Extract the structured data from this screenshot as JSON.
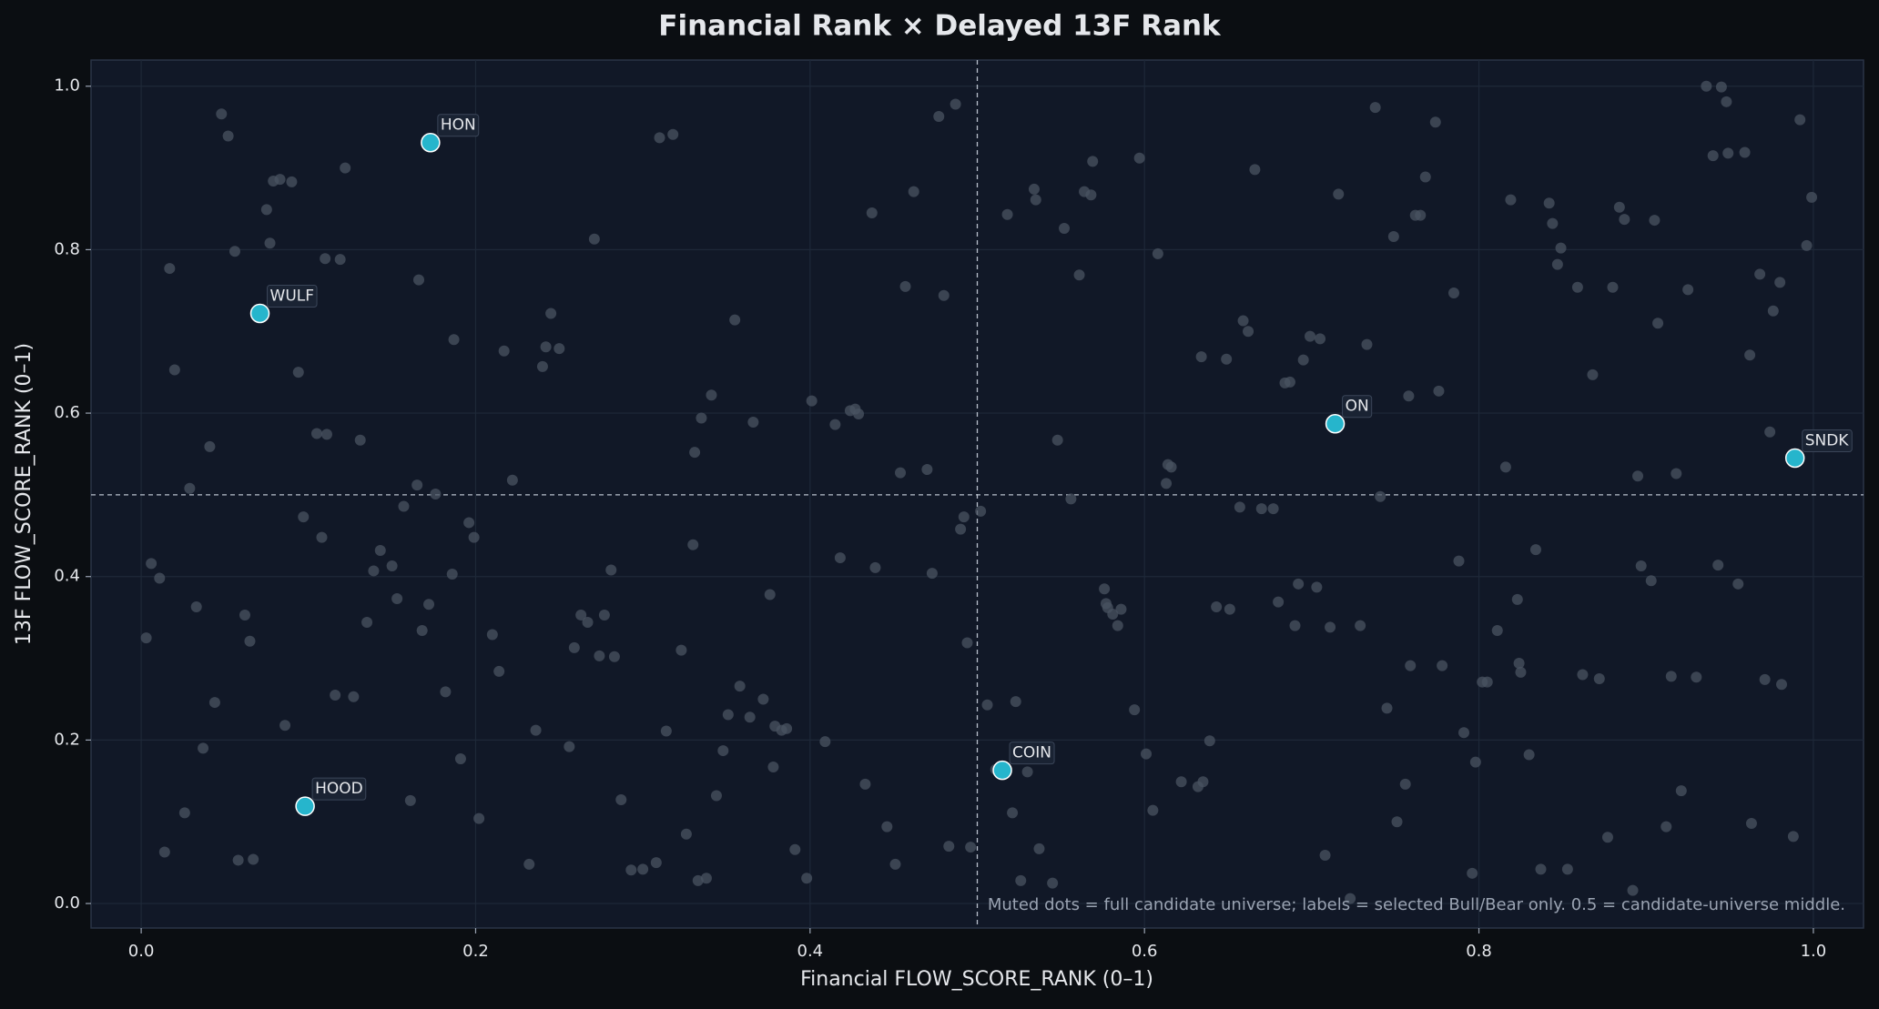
{
  "chart_data": {
    "type": "scatter",
    "title": "Financial Rank × Delayed 13F Rank",
    "x_label": "Financial FLOW_SCORE_RANK (0–1)",
    "y_label": "13F FLOW_SCORE_RANK (0–1)",
    "note": "Muted dots = full candidate universe; labels = selected Bull/Bear only. 0.5 = candidate-universe middle.",
    "xlim": [
      -0.03,
      1.03
    ],
    "ylim": [
      -0.03,
      1.032
    ],
    "xticks": [
      {
        "value": 0,
        "label": "0.0"
      },
      0.2,
      0.4,
      0.6,
      0.8,
      {
        "value": 1,
        "label": "1.0"
      }
    ],
    "yticks": [
      {
        "value": 0,
        "label": "0.0"
      },
      0.2,
      0.4,
      0.6,
      0.8,
      {
        "value": 1,
        "label": "1.0"
      }
    ],
    "grid": true,
    "reference_lines": {
      "x": 0.5,
      "y": 0.5
    },
    "series": [
      {
        "color": "#4a5361",
        "x": [
          0.003,
          0.006,
          0.011,
          0.014,
          0.017,
          0.02,
          0.026,
          0.029,
          0.033,
          0.037,
          0.041,
          0.044,
          0.048,
          0.052,
          0.056,
          0.058,
          0.062,
          0.065,
          0.067,
          0.075,
          0.077,
          0.079,
          0.083,
          0.086,
          0.09,
          0.094,
          0.097,
          0.105,
          0.108,
          0.11,
          0.111,
          0.116,
          0.119,
          0.122,
          0.127,
          0.131,
          0.135,
          0.139,
          0.143,
          0.15,
          0.153,
          0.157,
          0.161,
          0.165,
          0.166,
          0.168,
          0.172,
          0.176,
          0.182,
          0.186,
          0.187,
          0.191,
          0.196,
          0.199,
          0.202,
          0.21,
          0.214,
          0.217,
          0.222,
          0.232,
          0.236,
          0.24,
          0.242,
          0.245,
          0.25,
          0.256,
          0.259,
          0.263,
          0.267,
          0.271,
          0.274,
          0.277,
          0.281,
          0.283,
          0.287,
          0.293,
          0.3,
          0.308,
          0.31,
          0.314,
          0.318,
          0.323,
          0.326,
          0.33,
          0.331,
          0.333,
          0.335,
          0.338,
          0.341,
          0.344,
          0.348,
          0.351,
          0.355,
          0.358,
          0.364,
          0.366,
          0.372,
          0.376,
          0.378,
          0.379,
          0.383,
          0.386,
          0.391,
          0.398,
          0.401,
          0.409,
          0.415,
          0.418,
          0.424,
          0.427,
          0.429,
          0.433,
          0.437,
          0.439,
          0.446,
          0.451,
          0.454,
          0.457,
          0.462,
          0.47,
          0.473,
          0.477,
          0.48,
          0.483,
          0.487,
          0.49,
          0.492,
          0.494,
          0.496,
          0.502,
          0.506,
          0.511,
          0.518,
          0.521,
          0.523,
          0.526,
          0.53,
          0.534,
          0.535,
          0.537,
          0.545,
          0.548,
          0.552,
          0.556,
          0.561,
          0.564,
          0.568,
          0.569,
          0.576,
          0.577,
          0.578,
          0.581,
          0.584,
          0.586,
          0.594,
          0.597,
          0.601,
          0.605,
          0.608,
          0.613,
          0.614,
          0.616,
          0.622,
          0.632,
          0.634,
          0.635,
          0.639,
          0.643,
          0.649,
          0.651,
          0.657,
          0.659,
          0.662,
          0.666,
          0.67,
          0.677,
          0.68,
          0.684,
          0.687,
          0.69,
          0.692,
          0.695,
          0.699,
          0.703,
          0.705,
          0.708,
          0.711,
          0.716,
          0.723,
          0.729,
          0.733,
          0.738,
          0.741,
          0.745,
          0.749,
          0.751,
          0.756,
          0.758,
          0.759,
          0.762,
          0.765,
          0.768,
          0.774,
          0.776,
          0.778,
          0.785,
          0.788,
          0.791,
          0.796,
          0.798,
          0.802,
          0.805,
          0.811,
          0.816,
          0.819,
          0.823,
          0.824,
          0.825,
          0.83,
          0.834,
          0.837,
          0.842,
          0.844,
          0.847,
          0.849,
          0.853,
          0.859,
          0.862,
          0.868,
          0.872,
          0.877,
          0.88,
          0.884,
          0.887,
          0.892,
          0.895,
          0.897,
          0.903,
          0.905,
          0.907,
          0.912,
          0.915,
          0.918,
          0.921,
          0.925,
          0.93,
          0.936,
          0.94,
          0.943,
          0.945,
          0.948,
          0.949,
          0.955,
          0.959,
          0.962,
          0.963,
          0.968,
          0.971,
          0.974,
          0.976,
          0.98,
          0.981,
          0.988,
          0.992,
          0.996,
          0.999
        ],
        "values": [
          0.325,
          0.416,
          0.398,
          0.063,
          0.777,
          0.653,
          0.111,
          0.508,
          0.363,
          0.19,
          0.559,
          0.246,
          0.966,
          0.939,
          0.798,
          0.053,
          0.353,
          0.321,
          0.054,
          0.849,
          0.808,
          0.884,
          0.886,
          0.218,
          0.883,
          0.65,
          0.473,
          0.575,
          0.448,
          0.789,
          0.574,
          0.255,
          0.788,
          0.9,
          0.253,
          0.567,
          0.344,
          0.407,
          0.432,
          0.413,
          0.373,
          0.486,
          0.126,
          0.512,
          0.763,
          0.334,
          0.366,
          0.501,
          0.259,
          0.403,
          0.69,
          0.177,
          0.466,
          0.448,
          0.104,
          0.329,
          0.284,
          0.676,
          0.518,
          0.048,
          0.212,
          0.657,
          0.681,
          0.722,
          0.679,
          0.192,
          0.313,
          0.353,
          0.344,
          0.813,
          0.303,
          0.353,
          0.408,
          0.302,
          0.127,
          0.041,
          0.042,
          0.05,
          0.937,
          0.211,
          0.941,
          0.31,
          0.085,
          0.439,
          0.552,
          0.028,
          0.594,
          0.031,
          0.622,
          0.132,
          0.187,
          0.231,
          0.714,
          0.266,
          0.228,
          0.589,
          0.25,
          0.378,
          0.167,
          0.217,
          0.212,
          0.214,
          0.066,
          0.031,
          0.615,
          0.198,
          0.586,
          0.423,
          0.603,
          0.605,
          0.599,
          0.146,
          0.845,
          0.411,
          0.094,
          0.048,
          0.527,
          0.755,
          0.871,
          0.531,
          0.404,
          0.963,
          0.744,
          0.07,
          0.978,
          0.458,
          0.473,
          0.319,
          0.069,
          0.48,
          0.243,
          0.164,
          0.843,
          0.111,
          0.247,
          0.028,
          0.161,
          0.874,
          0.861,
          0.067,
          0.025,
          0.567,
          0.826,
          0.495,
          0.769,
          0.871,
          0.867,
          0.908,
          0.385,
          0.367,
          0.362,
          0.354,
          0.34,
          0.36,
          0.237,
          0.912,
          0.183,
          0.114,
          0.795,
          0.514,
          0.537,
          0.534,
          0.149,
          0.143,
          0.669,
          0.149,
          0.199,
          0.363,
          0.666,
          0.36,
          0.485,
          0.713,
          0.7,
          0.898,
          0.483,
          0.483,
          0.369,
          0.637,
          0.638,
          0.34,
          0.391,
          0.665,
          0.694,
          0.387,
          0.691,
          0.059,
          0.338,
          0.868,
          0.006,
          0.34,
          0.684,
          0.974,
          0.498,
          0.239,
          0.816,
          0.1,
          0.146,
          0.621,
          0.291,
          0.842,
          0.842,
          0.889,
          0.956,
          0.627,
          0.291,
          0.747,
          0.419,
          0.209,
          0.037,
          0.173,
          0.271,
          0.271,
          0.334,
          0.534,
          0.861,
          0.372,
          0.294,
          0.283,
          0.182,
          0.433,
          0.042,
          0.857,
          0.832,
          0.782,
          0.802,
          0.042,
          0.754,
          0.28,
          0.647,
          0.275,
          0.081,
          0.754,
          0.852,
          0.837,
          0.016,
          0.523,
          0.413,
          0.395,
          0.836,
          0.71,
          0.094,
          0.278,
          0.526,
          0.138,
          0.751,
          0.277,
          1.0,
          0.915,
          0.414,
          0.999,
          0.981,
          0.918,
          0.391,
          0.919,
          0.671,
          0.098,
          0.77,
          0.274,
          0.577,
          0.725,
          0.76,
          0.268,
          0.082,
          0.959,
          0.805,
          0.864
        ]
      },
      {
        "color": "#26b5cc",
        "labels": [
          "HON",
          "WULF",
          "HOOD",
          "COIN",
          "ON",
          "SNDK"
        ],
        "x": [
          0.173,
          0.071,
          0.098,
          0.515,
          0.714,
          0.989
        ],
        "values": [
          0.931,
          0.722,
          0.119,
          0.163,
          0.587,
          0.545
        ]
      }
    ]
  }
}
